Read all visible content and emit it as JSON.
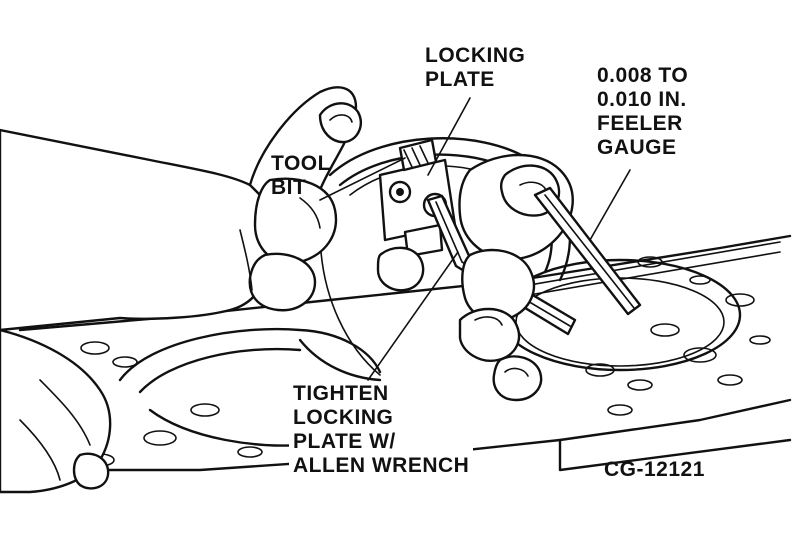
{
  "labels": {
    "locking_plate": [
      "LOCKING",
      "PLATE"
    ],
    "feeler_gauge": [
      "0.008 TO",
      "0.010 IN.",
      "FEELER",
      "GAUGE"
    ],
    "tool_bit": [
      "TOOL",
      "BIT"
    ],
    "tighten": [
      "TIGHTEN",
      "LOCKING",
      "PLATE W/",
      "ALLEN WRENCH"
    ],
    "figure_code": "CG-12121"
  }
}
